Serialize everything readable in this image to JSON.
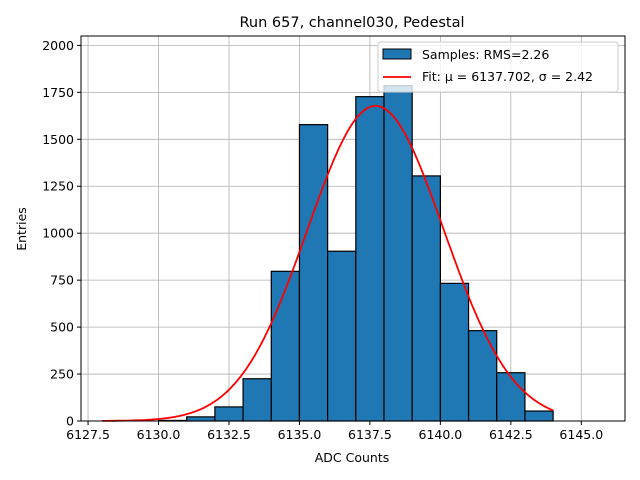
{
  "chart_data": {
    "type": "bar",
    "title": "Run 657, channel030, Pedestal",
    "xlabel": "ADC Counts",
    "ylabel": "Entries",
    "xlim": [
      6127.25,
      6146.55
    ],
    "ylim": [
      0,
      2050
    ],
    "grid": true,
    "legend_placement": "top-right",
    "x_ticks": [
      6127.5,
      6130.0,
      6132.5,
      6135.0,
      6137.5,
      6140.0,
      6142.5,
      6145.0
    ],
    "x_tick_labels": [
      "6127.5",
      "6130.0",
      "6132.5",
      "6135.0",
      "6137.5",
      "6140.0",
      "6142.5",
      "6145.0"
    ],
    "y_ticks": [
      0,
      250,
      500,
      750,
      1000,
      1250,
      1500,
      1750,
      2000
    ],
    "y_tick_labels": [
      "0",
      "250",
      "500",
      "750",
      "1000",
      "1250",
      "1500",
      "1750",
      "2000"
    ],
    "histogram": {
      "name": "Samples: RMS=2.26",
      "color": "#1f77b4",
      "bin_edges": [
        6130,
        6131,
        6132,
        6133,
        6134,
        6135,
        6136,
        6137,
        6138,
        6139,
        6140,
        6141,
        6142,
        6143,
        6144
      ],
      "values": [
        3,
        22,
        75,
        225,
        797,
        1578,
        904,
        1727,
        1786,
        1305,
        733,
        481,
        257,
        53
      ]
    },
    "fit": {
      "name": "Fit: μ = 6137.702, σ = 2.42",
      "color": "#ff0000",
      "mu": 6137.702,
      "sigma": 2.42,
      "amplitude": 1678,
      "x_range": [
        6128,
        6144
      ]
    }
  }
}
